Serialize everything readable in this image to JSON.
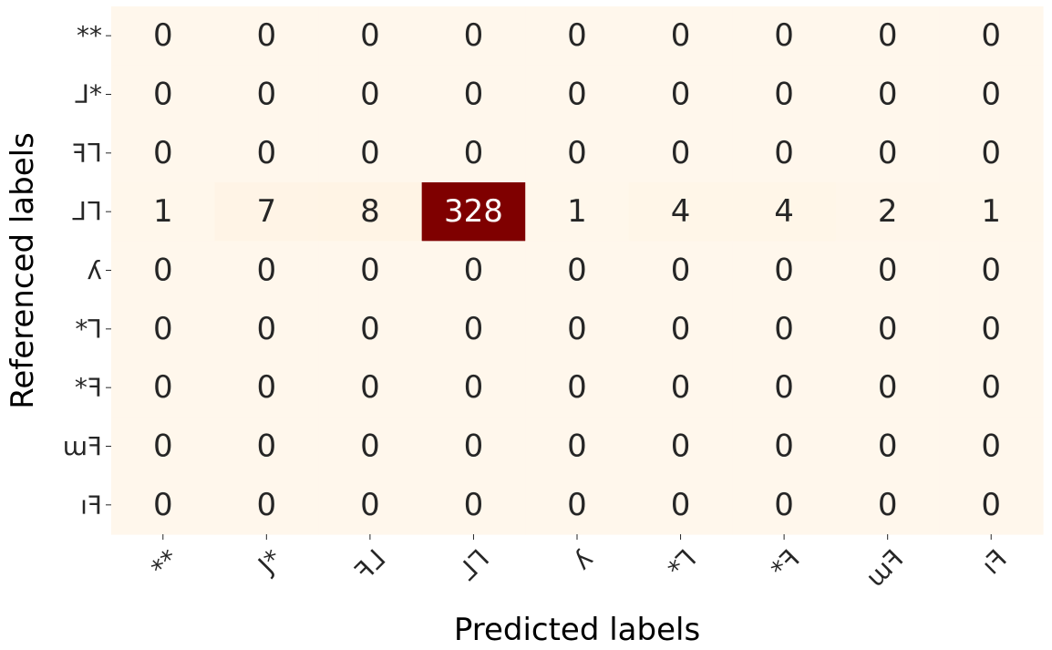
{
  "chart_data": {
    "type": "heatmap",
    "title": "",
    "xlabel": "Predicted labels",
    "ylabel": "Referenced labels",
    "x_categories": [
      "**",
      "J*",
      "ꟻᒧ",
      "ᒧᒣ",
      "ʎ",
      "*ꓶ",
      "*ꟻ",
      "ɯꟻ",
      "ıꟻ"
    ],
    "y_categories": [
      "**",
      "ᒧ*",
      "ꟻᒣ",
      "ᒧᒣ",
      "ʎ",
      "*ꓶ",
      "*ꟻ",
      "ɯꟻ",
      "ıꟻ"
    ],
    "values": [
      [
        0,
        0,
        0,
        0,
        0,
        0,
        0,
        0,
        0
      ],
      [
        0,
        0,
        0,
        0,
        0,
        0,
        0,
        0,
        0
      ],
      [
        0,
        0,
        0,
        0,
        0,
        0,
        0,
        0,
        0
      ],
      [
        1,
        7,
        8,
        328,
        1,
        4,
        4,
        2,
        1
      ],
      [
        0,
        0,
        0,
        0,
        0,
        0,
        0,
        0,
        0
      ],
      [
        0,
        0,
        0,
        0,
        0,
        0,
        0,
        0,
        0
      ],
      [
        0,
        0,
        0,
        0,
        0,
        0,
        0,
        0,
        0
      ],
      [
        0,
        0,
        0,
        0,
        0,
        0,
        0,
        0,
        0
      ],
      [
        0,
        0,
        0,
        0,
        0,
        0,
        0,
        0,
        0
      ]
    ],
    "value_range": [
      0,
      328
    ],
    "colormap": {
      "low": "#fff5eb",
      "high": "#7f0000"
    },
    "text_colors": {
      "dark": "#262626",
      "light": "#ffffff"
    },
    "colorbar": false,
    "grid": false
  }
}
